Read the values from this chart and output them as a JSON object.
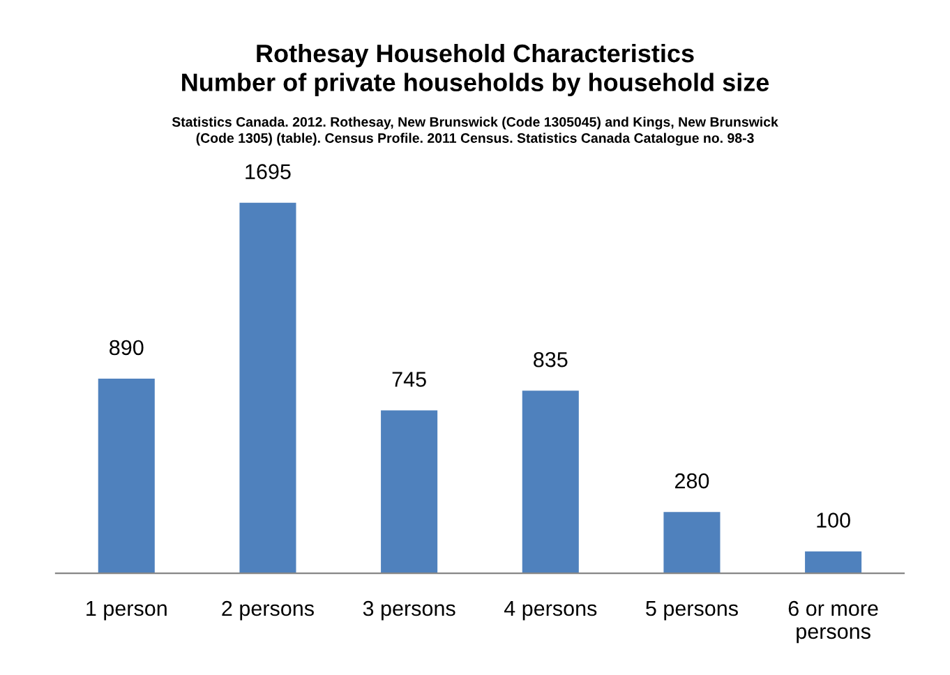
{
  "chart_data": {
    "type": "bar",
    "title": "Rothesay Household Characteristics\nNumber of private households by household size",
    "annotations": [
      "Statistics Canada. 2012. Rothesay, New Brunswick (Code 1305045) and Kings, New Brunswick\n(Code 1305) (table). Census Profile. 2011 Census. Statistics Canada Catalogue no. 98-3"
    ],
    "categories": [
      "1 person",
      "2 persons",
      "3 persons",
      "4 persons",
      "5 persons",
      "6 or more\npersons"
    ],
    "values": [
      890,
      1695,
      745,
      835,
      280,
      100
    ],
    "color": "#4f81bd",
    "data_labels": true,
    "tick_labels": "x",
    "grid": false
  }
}
